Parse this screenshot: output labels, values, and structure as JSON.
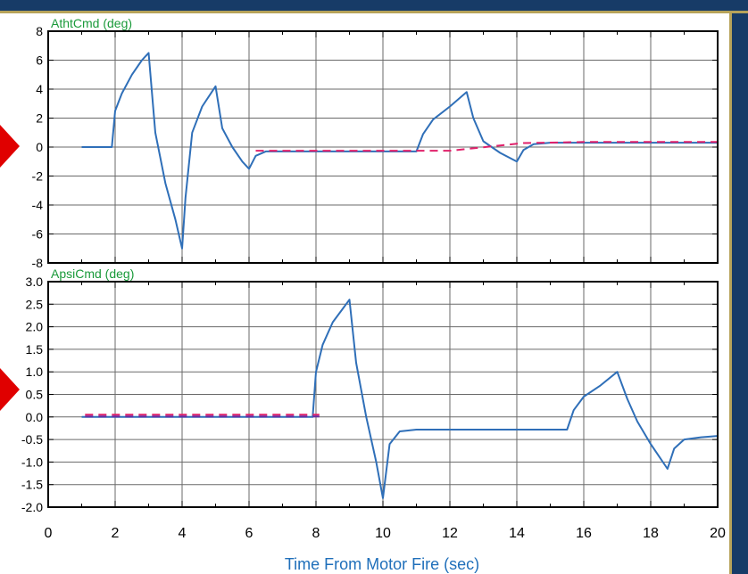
{
  "colors": {
    "banner": "#173b67",
    "banner_accent": "#b7a35a",
    "marker": "#e00000",
    "panel_title": "#1a9a3a",
    "x_title": "#1f6fba",
    "line_primary": "#2f6fb8",
    "line_secondary": "#e0206a",
    "line_tertiary": "#6a2aa0"
  },
  "chart_data": [
    {
      "type": "line",
      "title": "AthtCmd (deg)",
      "xlim": [
        0,
        20
      ],
      "ylim": [
        -8,
        8
      ],
      "yticks": [
        "8",
        "6",
        "4",
        "2",
        "0",
        "-2",
        "-4",
        "-6",
        "-8"
      ],
      "grid": true,
      "series": [
        {
          "color": "#2f6fb8",
          "dashed": false,
          "x": [
            1,
            1.9,
            2.0,
            2.2,
            2.5,
            2.8,
            3.0,
            3.2,
            3.5,
            3.8,
            4.0,
            4.1,
            4.3,
            4.6,
            5.0,
            5.2,
            5.5,
            5.8,
            6.0,
            6.2,
            6.5,
            7,
            8,
            9,
            10,
            11,
            11.2,
            11.5,
            12,
            12.5,
            12.7,
            13,
            13.5,
            14,
            14.2,
            14.5,
            15,
            16,
            18,
            20
          ],
          "y": [
            0,
            0,
            2.5,
            3.7,
            5.0,
            6.0,
            6.5,
            1.0,
            -2.5,
            -5.0,
            -7.0,
            -3.5,
            1.0,
            2.8,
            4.2,
            1.3,
            0,
            -1.0,
            -1.5,
            -0.6,
            -0.3,
            -0.3,
            -0.3,
            -0.3,
            -0.3,
            -0.3,
            0.9,
            1.9,
            2.8,
            3.8,
            2.0,
            0.4,
            -0.4,
            -1.0,
            -0.2,
            0.2,
            0.3,
            0.3,
            0.3,
            0.3
          ]
        },
        {
          "color": "#e0206a",
          "dashed": true,
          "x": [
            6.2,
            8,
            10,
            12,
            14.2,
            16,
            18,
            20
          ],
          "y": [
            -0.25,
            -0.25,
            -0.25,
            -0.25,
            0.28,
            0.35,
            0.35,
            0.35
          ]
        }
      ]
    },
    {
      "type": "line",
      "title": "ApsiCmd (deg)",
      "xlim": [
        0,
        20
      ],
      "ylim": [
        -2.0,
        3.0
      ],
      "yticks": [
        "3.0",
        "2.5",
        "2.0",
        "1.5",
        "1.0",
        "0.5",
        "0.0",
        "-0.5",
        "-1.0",
        "-1.5",
        "-2.0"
      ],
      "grid": true,
      "xlabel": "Time From Motor Fire (sec)",
      "xticks": [
        "0",
        "2",
        "4",
        "6",
        "8",
        "10",
        "12",
        "14",
        "16",
        "18",
        "20"
      ],
      "series": [
        {
          "color": "#2f6fb8",
          "dashed": false,
          "x": [
            1,
            7.9,
            8.0,
            8.2,
            8.5,
            8.8,
            9.0,
            9.2,
            9.5,
            9.8,
            10.0,
            10.2,
            10.5,
            11,
            12,
            13,
            14,
            15,
            15.5,
            15.7,
            16.0,
            16.5,
            17.0,
            17.3,
            17.6,
            18.0,
            18.5,
            18.7,
            19.0,
            19.5,
            20
          ],
          "y": [
            0,
            0,
            1.0,
            1.6,
            2.1,
            2.4,
            2.6,
            1.2,
            0.0,
            -1.0,
            -1.8,
            -0.6,
            -0.32,
            -0.28,
            -0.28,
            -0.28,
            -0.28,
            -0.28,
            -0.28,
            0.15,
            0.45,
            0.7,
            1.0,
            0.4,
            -0.1,
            -0.6,
            -1.15,
            -0.7,
            -0.5,
            -0.45,
            -0.42
          ]
        },
        {
          "color": "#e0206a",
          "dashed": true,
          "x": [
            1.1,
            8.1
          ],
          "y": [
            0.05,
            0.05
          ]
        },
        {
          "color": "#6a2aa0",
          "dashed": true,
          "x": [
            1.1,
            8.1
          ],
          "y": [
            0.01,
            0.01
          ]
        }
      ]
    }
  ]
}
